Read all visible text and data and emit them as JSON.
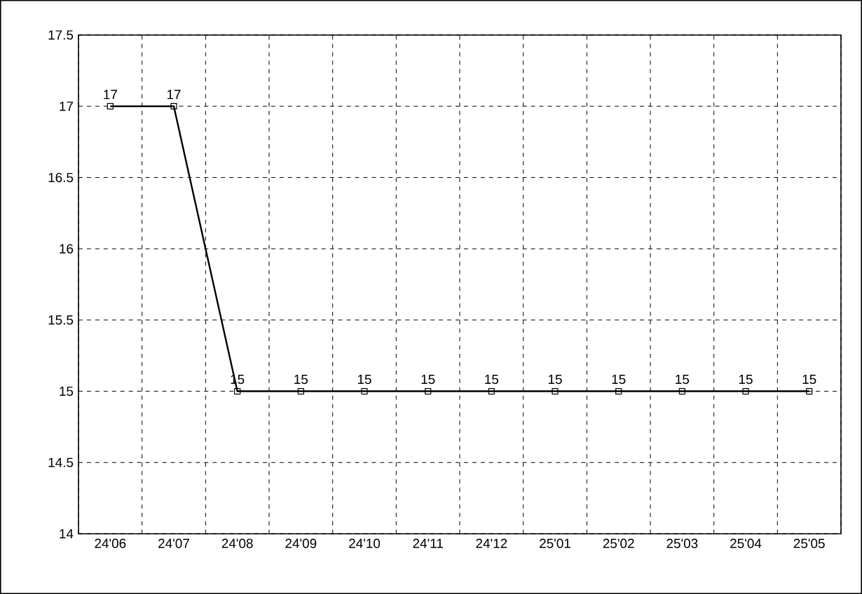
{
  "chart_data": {
    "type": "line",
    "categories": [
      "24'06",
      "24'07",
      "24'08",
      "24'09",
      "24'10",
      "24'11",
      "24'12",
      "25'01",
      "25'02",
      "25'03",
      "25'04",
      "25'05"
    ],
    "values": [
      17,
      17,
      15,
      15,
      15,
      15,
      15,
      15,
      15,
      15,
      15,
      15
    ],
    "color": "#000000",
    "ylim": [
      14,
      17.5
    ],
    "yticks": [
      14,
      14.5,
      15,
      15.5,
      16,
      16.5,
      17,
      17.5
    ],
    "grid": true,
    "marker": "square",
    "line_style": "solid",
    "data_labels": true
  }
}
